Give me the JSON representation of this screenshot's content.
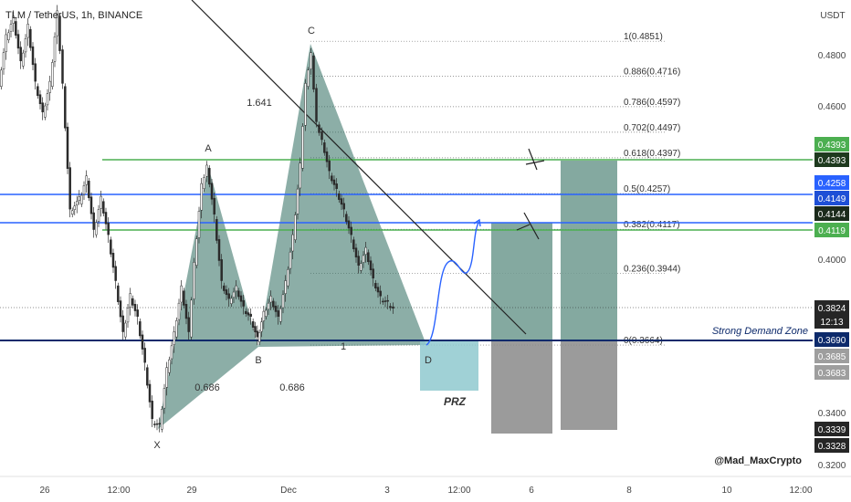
{
  "header": {
    "symbol_line": "TLM / TetherUS, 1h, BINANCE"
  },
  "price_axis": {
    "unit": "USDT",
    "ticks": [
      "0.4800",
      "0.4600",
      "0.4000",
      "0.3400",
      "0.3200"
    ],
    "badges": [
      {
        "label": "0.4393",
        "color": "#4caf50",
        "price": 0.4393
      },
      {
        "label": "0.4393",
        "color": "#1e3a1e",
        "price": 0.4393
      },
      {
        "label": "0.4258",
        "color": "#2962ff",
        "price": 0.4258
      },
      {
        "label": "0.4149",
        "color": "#1e4fd6",
        "price": 0.4149
      },
      {
        "label": "0.4144",
        "color": "#1b2a1b",
        "price": 0.4144
      },
      {
        "label": "0.4119",
        "color": "#4caf50",
        "price": 0.4119
      },
      {
        "label": "0.3824",
        "color": "#262626",
        "price": 0.3824
      },
      {
        "label": "12:13",
        "color": "#262626",
        "price": 0.3794
      },
      {
        "label": "0.3690",
        "color": "#0d2a6b",
        "price": 0.369
      },
      {
        "label": "0.3685",
        "color": "#9e9e9e",
        "price": 0.3685
      },
      {
        "label": "0.3683",
        "color": "#9e9e9e",
        "price": 0.3683
      },
      {
        "label": "0.3339",
        "color": "#262626",
        "price": 0.3339
      },
      {
        "label": "0.3328",
        "color": "#262626",
        "price": 0.3328
      }
    ]
  },
  "time_axis": {
    "ticks": [
      "26",
      "12:00",
      "29",
      "Dec",
      "3",
      "12:00",
      "6",
      "8",
      "10",
      "12:00"
    ]
  },
  "fib_levels": [
    {
      "label": "1(0.4851)",
      "price": 0.4851
    },
    {
      "label": "0.886(0.4716)",
      "price": 0.4716
    },
    {
      "label": "0.786(0.4597)",
      "price": 0.4597
    },
    {
      "label": "0.702(0.4497)",
      "price": 0.4497
    },
    {
      "label": "0.618(0.4397)",
      "price": 0.4397
    },
    {
      "label": "0.5(0.4257)",
      "price": 0.4257
    },
    {
      "label": "0.382(0.4117)",
      "price": 0.4117
    },
    {
      "label": "0.236(0.3944)",
      "price": 0.3944
    },
    {
      "label": "0(0.3664)",
      "price": 0.3664
    }
  ],
  "pattern": {
    "points": [
      {
        "label": "X",
        "price": 0.337
      },
      {
        "label": "A",
        "price": 0.4393
      },
      {
        "label": "B",
        "price": 0.367
      },
      {
        "label": "C",
        "price": 0.4851
      },
      {
        "label": "D",
        "price": 0.3664
      }
    ],
    "ratios": [
      "0.686",
      "0.686",
      "1.641",
      "1"
    ]
  },
  "annotations": {
    "demand_zone": "Strong Demand Zone",
    "prz": "PRZ",
    "watermark": "@Mad_MaxCrypto"
  },
  "colors": {
    "pattern_fill": "#2e6b5f",
    "green_line": "#4caf50",
    "blue_line": "#2962ff",
    "demand_line": "#0d2a6b",
    "target_box": "#6f9a8f",
    "stop_box": "#8a8a8a",
    "prz_box": "#8fc9cf"
  },
  "chart_data": {
    "type": "candlestick",
    "title": "TLM / TetherUS, 1h, BINANCE",
    "ylabel": "USDT",
    "ylim": [
      0.318,
      0.5
    ],
    "horizontal_lines": [
      {
        "price": 0.4393,
        "color": "green"
      },
      {
        "price": 0.4258,
        "color": "blue"
      },
      {
        "price": 0.4149,
        "color": "blue"
      },
      {
        "price": 0.4119,
        "color": "green"
      },
      {
        "price": 0.369,
        "color": "dark-blue"
      }
    ],
    "harmonic_pattern": [
      "X",
      "A",
      "B",
      "C",
      "D"
    ]
  }
}
